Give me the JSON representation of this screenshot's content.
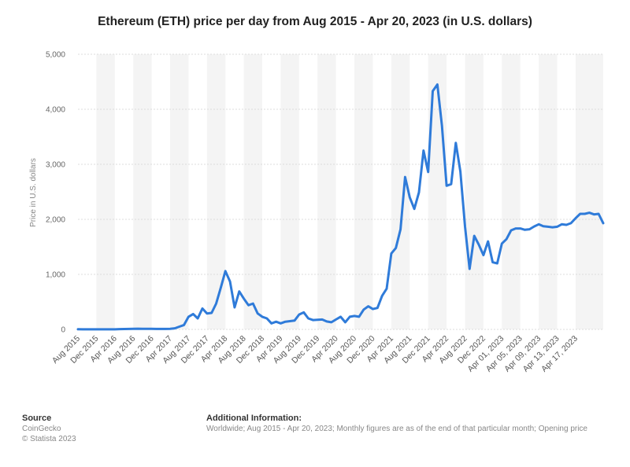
{
  "chart_data": {
    "type": "line",
    "title": "Ethereum (ETH) price per day from Aug 2015 - Apr 20, 2023 (in U.S. dollars)",
    "ylabel": "Price in U.S. dollars",
    "ylim": [
      0,
      5000
    ],
    "yticks": [
      "0",
      "1,000",
      "2,000",
      "3,000",
      "4,000",
      "5,000"
    ],
    "grid": true,
    "legend": "none",
    "series_color": "#2f7bd9",
    "x_tick_labels": [
      "Aug 2015",
      "Dec 2015",
      "Apr 2016",
      "Aug 2016",
      "Dec 2016",
      "Apr 2017",
      "Aug 2017",
      "Dec 2017",
      "Apr 2018",
      "Aug 2018",
      "Dec 2018",
      "Apr 2019",
      "Aug 2019",
      "Dec 2019",
      "Apr 2020",
      "Aug 2020",
      "Dec 2020",
      "Apr 2021",
      "Aug 2021",
      "Dec 2021",
      "Apr 2022",
      "Aug 2022",
      "Dec 2022",
      "Apr 01, 2023",
      "Apr 05, 2023",
      "Apr 09, 2023",
      "Apr 13, 2023",
      "Apr 17, 2023"
    ],
    "x_tick_index": [
      0,
      4,
      8,
      12,
      16,
      20,
      24,
      28,
      32,
      36,
      40,
      44,
      48,
      52,
      56,
      60,
      64,
      68,
      72,
      76,
      80,
      84,
      88,
      92,
      96,
      100,
      104,
      108
    ],
    "values": [
      3,
      1,
      1,
      1,
      1,
      1,
      1,
      1,
      2,
      5,
      7,
      9,
      11,
      13,
      12,
      12,
      10,
      9,
      8,
      8,
      10,
      20,
      50,
      80,
      230,
      280,
      200,
      380,
      290,
      300,
      470,
      760,
      1060,
      870,
      400,
      690,
      560,
      440,
      470,
      290,
      230,
      200,
      110,
      140,
      110,
      140,
      150,
      160,
      270,
      310,
      200,
      170,
      175,
      180,
      145,
      130,
      180,
      230,
      130,
      230,
      245,
      230,
      360,
      420,
      370,
      390,
      610,
      740,
      1380,
      1480,
      1820,
      2770,
      2400,
      2190,
      2490,
      3250,
      2860,
      4330,
      4450,
      3700,
      2610,
      2640,
      3390,
      2870,
      1870,
      1100,
      1700,
      1540,
      1350,
      1600,
      1220,
      1200,
      1560,
      1640,
      1800,
      1835,
      1835,
      1810,
      1820,
      1870,
      1910,
      1875,
      1865,
      1855,
      1865,
      1910,
      1900,
      1930,
      2020,
      2100,
      2100,
      2120,
      2090,
      2100,
      1930
    ]
  },
  "footer": {
    "source_heading": "Source",
    "source_line1": "CoinGecko",
    "source_line2": "© Statista 2023",
    "info_heading": "Additional Information:",
    "info_text": "Worldwide; Aug 2015 - Apr 20, 2023; Monthly figures are as of the end of that particular month; Opening price"
  }
}
